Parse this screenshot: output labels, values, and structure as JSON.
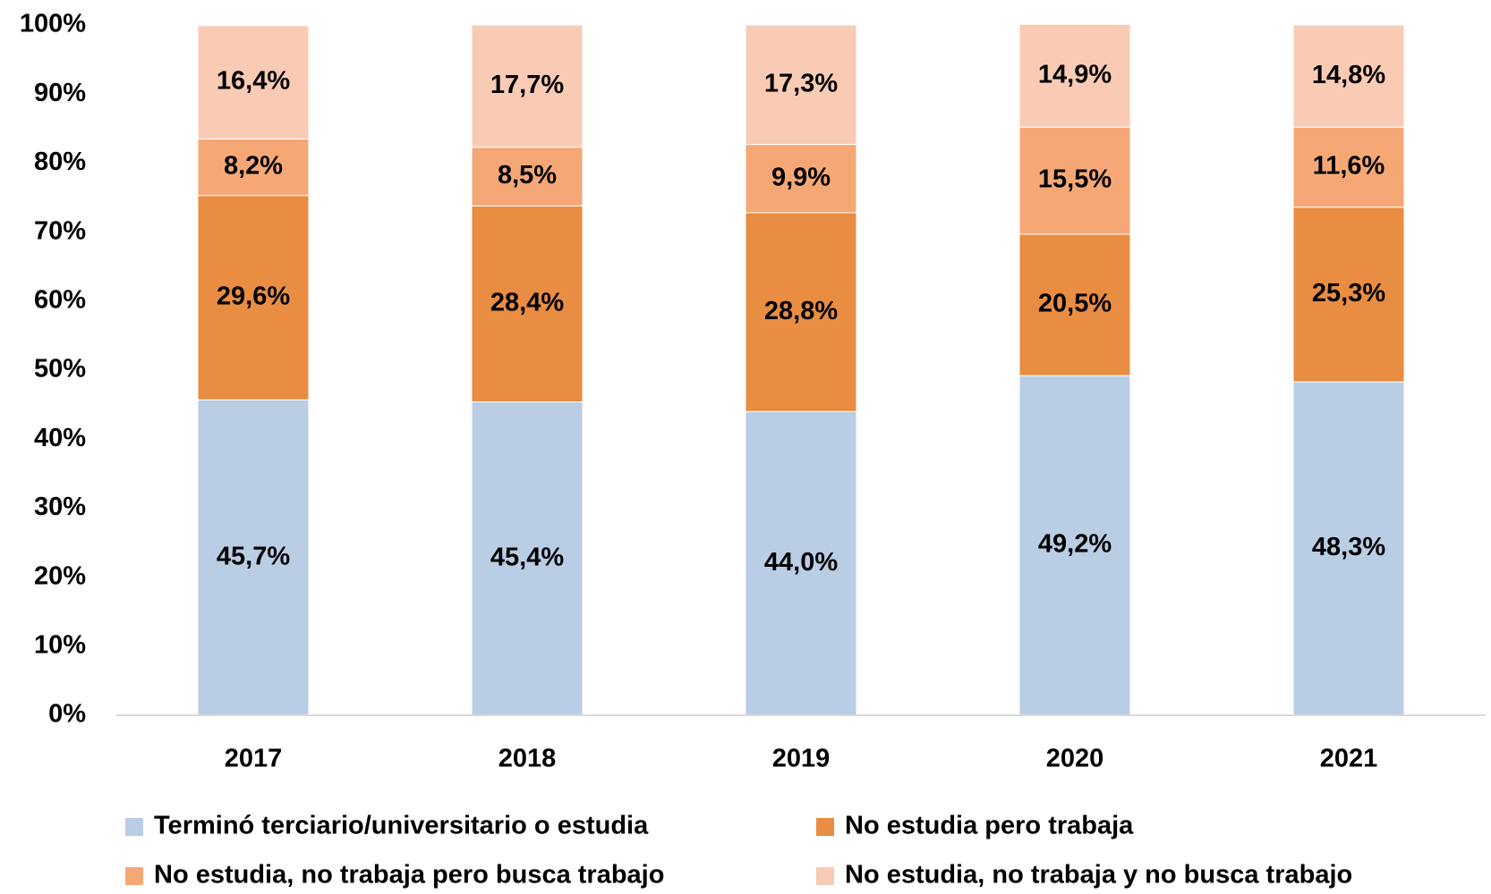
{
  "chart_data": {
    "type": "stacked_bar",
    "categories": [
      "2017",
      "2018",
      "2019",
      "2020",
      "2021"
    ],
    "series": [
      {
        "name": "Terminó terciario/universitario o estudia",
        "color": "#b9cde5",
        "values": [
          45.7,
          45.4,
          44.0,
          49.2,
          48.3
        ],
        "value_labels": [
          "45,7%",
          "45,4%",
          "44,0%",
          "49,2%",
          "48,3%"
        ]
      },
      {
        "name": "No estudia pero trabaja",
        "color": "#e88d42",
        "values": [
          29.6,
          28.4,
          28.8,
          20.5,
          25.3
        ],
        "value_labels": [
          "29,6%",
          "28,4%",
          "28,8%",
          "20,5%",
          "25,3%"
        ]
      },
      {
        "name": "No estudia, no trabaja pero busca trabajo",
        "color": "#f5a875",
        "values": [
          8.2,
          8.5,
          9.9,
          15.5,
          11.6
        ],
        "value_labels": [
          "8,2%",
          "8,5%",
          "9,9%",
          "15,5%",
          "11,6%"
        ]
      },
      {
        "name": "No estudia, no trabaja y no busca trabajo",
        "color": "#f9cbb5",
        "values": [
          16.4,
          17.7,
          17.3,
          14.9,
          14.8
        ],
        "value_labels": [
          "16,4%",
          "17,7%",
          "17,3%",
          "14,9%",
          "14,8%"
        ]
      }
    ],
    "ylim": [
      0,
      100
    ],
    "yticks": [
      {
        "value": 0,
        "label": "0%"
      },
      {
        "value": 10,
        "label": "10%"
      },
      {
        "value": 20,
        "label": "20%"
      },
      {
        "value": 30,
        "label": "30%"
      },
      {
        "value": 40,
        "label": "40%"
      },
      {
        "value": 50,
        "label": "50%"
      },
      {
        "value": 60,
        "label": "60%"
      },
      {
        "value": 70,
        "label": "70%"
      },
      {
        "value": 80,
        "label": "80%"
      },
      {
        "value": 90,
        "label": "90%"
      },
      {
        "value": 100,
        "label": "100%"
      }
    ],
    "grid": false,
    "legend": "bottom"
  }
}
